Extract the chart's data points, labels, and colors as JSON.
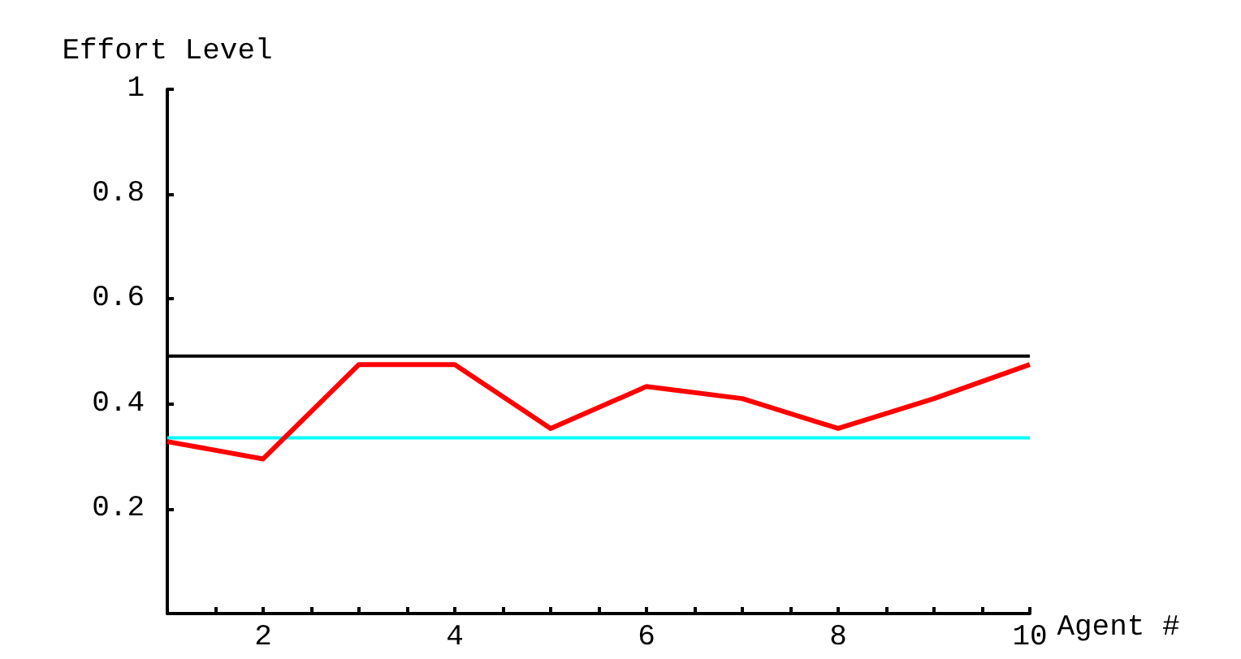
{
  "chart_data": {
    "type": "line",
    "xlabel": "Agent #",
    "ylabel": "Effort Level",
    "x": [
      1,
      2,
      3,
      4,
      5,
      6,
      7,
      8,
      9,
      10
    ],
    "series": [
      {
        "color": "#ff0000",
        "values": [
          0.328,
          0.295,
          0.475,
          0.475,
          0.353,
          0.433,
          0.41,
          0.353,
          0.41,
          0.475
        ]
      }
    ],
    "xlim": [
      1,
      10
    ],
    "xticks": [
      {
        "value": 1.5,
        "label": null
      },
      2,
      {
        "value": 2.5,
        "label": null
      },
      {
        "value": 3,
        "label": null
      },
      {
        "value": 3.5,
        "label": null
      },
      4,
      {
        "value": 4.5,
        "label": null
      },
      {
        "value": 5,
        "label": null
      },
      {
        "value": 5.5,
        "label": null
      },
      6,
      {
        "value": 6.5,
        "label": null
      },
      {
        "value": 7,
        "label": null
      },
      {
        "value": 7.5,
        "label": null
      },
      8,
      {
        "value": 8.5,
        "label": null
      },
      {
        "value": 9,
        "label": null
      },
      {
        "value": 9.5,
        "label": null
      },
      10
    ],
    "ylim": [
      0,
      1
    ],
    "yticks": [
      0.2,
      0.4,
      0.6,
      0.8,
      1
    ],
    "ref_lines": [
      {
        "axis": "y",
        "value": 0.491,
        "color": "#000000"
      },
      {
        "axis": "y",
        "value": 0.335,
        "color": "#00ffff"
      }
    ],
    "grid": false,
    "marker": "none",
    "line_style": "solid"
  }
}
